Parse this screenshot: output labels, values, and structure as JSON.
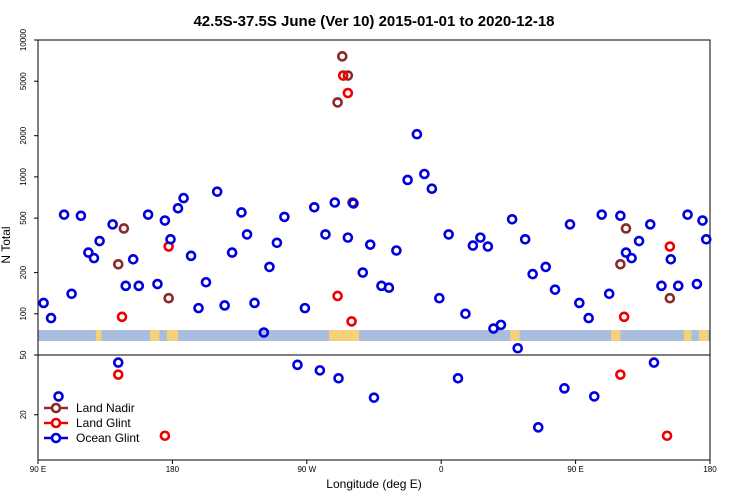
{
  "chart_data": {
    "type": "scatter",
    "title": "42.5S-37.5S June (Ver 10)   2015-01-01 to 2020-12-18",
    "xlabel": "Longitude (deg E)",
    "ylabel": "N Total",
    "scale_y": "log",
    "xlim": [
      90,
      450
    ],
    "ylim_upper": [
      50,
      10000
    ],
    "ylim_lower": [
      10,
      50
    ],
    "x_ticks": [
      {
        "value": 90,
        "label": "90 E"
      },
      {
        "value": 162,
        "label": "180"
      },
      {
        "value": 234,
        "label": "90 W"
      },
      {
        "value": 306,
        "label": "0"
      },
      {
        "value": 378,
        "label": "90 E"
      },
      {
        "value": 450,
        "label": "180"
      }
    ],
    "y_ticks_upper": [
      {
        "value": 100,
        "label": "100"
      },
      {
        "value": 200,
        "label": "200"
      },
      {
        "value": 500,
        "label": "500"
      },
      {
        "value": 1000,
        "label": "1000"
      },
      {
        "value": 2000,
        "label": "2000"
      },
      {
        "value": 5000,
        "label": "5000"
      },
      {
        "value": 10000,
        "label": "10000"
      }
    ],
    "y_ticks_lower": [
      {
        "value": 20,
        "label": "20"
      },
      {
        "value": 50,
        "label": "50"
      }
    ],
    "legend": {
      "position": "bottom-left",
      "entries": [
        {
          "label": "Land Nadir",
          "color": "#8b2a2a"
        },
        {
          "label": "Land Glint",
          "color": "#ee0000"
        },
        {
          "label": "Ocean Glint",
          "color": "#0000dd"
        }
      ]
    },
    "series": [
      {
        "name": "Land Nadir",
        "color": "#8b2a2a",
        "points": [
          [
            133,
            230
          ],
          [
            136,
            420
          ],
          [
            160,
            130
          ],
          [
            250.5,
            3500
          ],
          [
            253,
            7600
          ],
          [
            256,
            5500
          ],
          [
            258.5,
            650
          ],
          [
            402,
            230
          ],
          [
            405,
            420
          ],
          [
            428.5,
            130
          ]
        ]
      },
      {
        "name": "Land Glint",
        "color": "#ee0000",
        "points": [
          [
            133,
            37
          ],
          [
            135,
            95
          ],
          [
            158,
            14.5
          ],
          [
            160,
            310
          ],
          [
            250.5,
            135
          ],
          [
            253.5,
            5500
          ],
          [
            256,
            4100
          ],
          [
            258,
            88
          ],
          [
            402,
            37
          ],
          [
            404,
            95
          ],
          [
            427,
            14.5
          ],
          [
            428.5,
            310
          ]
        ]
      },
      {
        "name": "Ocean Glint",
        "color": "#0000dd",
        "points": [
          [
            93,
            120
          ],
          [
            97,
            93
          ],
          [
            101,
            26.5
          ],
          [
            104,
            530
          ],
          [
            108,
            140
          ],
          [
            113,
            520
          ],
          [
            117,
            280
          ],
          [
            120,
            255
          ],
          [
            123,
            340
          ],
          [
            130,
            450
          ],
          [
            133,
            44.5
          ],
          [
            137,
            160
          ],
          [
            141,
            250
          ],
          [
            144,
            160
          ],
          [
            149,
            530
          ],
          [
            154,
            165
          ],
          [
            158,
            480
          ],
          [
            161,
            350
          ],
          [
            165,
            590
          ],
          [
            168,
            700
          ],
          [
            172,
            265
          ],
          [
            176,
            110
          ],
          [
            180,
            170
          ],
          [
            186,
            780
          ],
          [
            190,
            115
          ],
          [
            194,
            280
          ],
          [
            199,
            550
          ],
          [
            202,
            380
          ],
          [
            206,
            120
          ],
          [
            211,
            73
          ],
          [
            214,
            220
          ],
          [
            218,
            330
          ],
          [
            222,
            510
          ],
          [
            229,
            43
          ],
          [
            233,
            110
          ],
          [
            238,
            600
          ],
          [
            241,
            39.5
          ],
          [
            244,
            380
          ],
          [
            249,
            650
          ],
          [
            251,
            35
          ],
          [
            256,
            360
          ],
          [
            259,
            640
          ],
          [
            264,
            200
          ],
          [
            268,
            320
          ],
          [
            270,
            26
          ],
          [
            274,
            160
          ],
          [
            278,
            155
          ],
          [
            282,
            290
          ],
          [
            288,
            950
          ],
          [
            293,
            2050
          ],
          [
            297,
            1050
          ],
          [
            301,
            820
          ],
          [
            305,
            130
          ],
          [
            310,
            380
          ],
          [
            315,
            35
          ],
          [
            319,
            100
          ],
          [
            323,
            315
          ],
          [
            327,
            360
          ],
          [
            331,
            310
          ],
          [
            334,
            78
          ],
          [
            338,
            83
          ],
          [
            344,
            490
          ],
          [
            347,
            56
          ],
          [
            351,
            350
          ],
          [
            355,
            195
          ],
          [
            358,
            16.5
          ],
          [
            362,
            220
          ],
          [
            367,
            150
          ],
          [
            372,
            30
          ],
          [
            375,
            450
          ],
          [
            380,
            120
          ],
          [
            385,
            93
          ],
          [
            388,
            26.5
          ],
          [
            392,
            530
          ],
          [
            396,
            140
          ],
          [
            402,
            520
          ],
          [
            405,
            280
          ],
          [
            408,
            255
          ],
          [
            412,
            340
          ],
          [
            418,
            450
          ],
          [
            420,
            44.5
          ],
          [
            424,
            160
          ],
          [
            429,
            250
          ],
          [
            433,
            160
          ],
          [
            438,
            530
          ],
          [
            443,
            165
          ],
          [
            446,
            480
          ],
          [
            448,
            350
          ]
        ]
      }
    ]
  }
}
